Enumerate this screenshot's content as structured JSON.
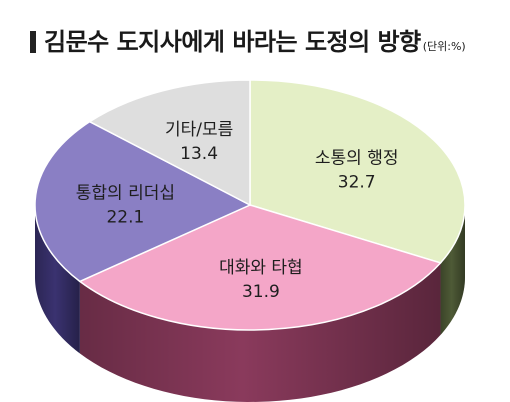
{
  "title": "김문수 도지사에게 바라는 도정의 방향",
  "unit": "(단위:%)",
  "chart_data": {
    "type": "pie",
    "title": "김문수 도지사에게 바라는 도정의 방향",
    "unit": "(단위:%)",
    "style": "3d",
    "slices": [
      {
        "label": "소통의 행정",
        "value": 32.7,
        "color": "#e4efc6",
        "side_color": "#4e5a36"
      },
      {
        "label": "대화와 타협",
        "value": 31.9,
        "color": "#f4a6c8",
        "side_color": "#8a3a5c"
      },
      {
        "label": "통합의 리더십",
        "value": 22.1,
        "color": "#8a7fc4",
        "side_color": "#3a3270"
      },
      {
        "label": "기타/모름",
        "value": 13.4,
        "color": "#dedede",
        "side_color": "#777777"
      }
    ]
  }
}
